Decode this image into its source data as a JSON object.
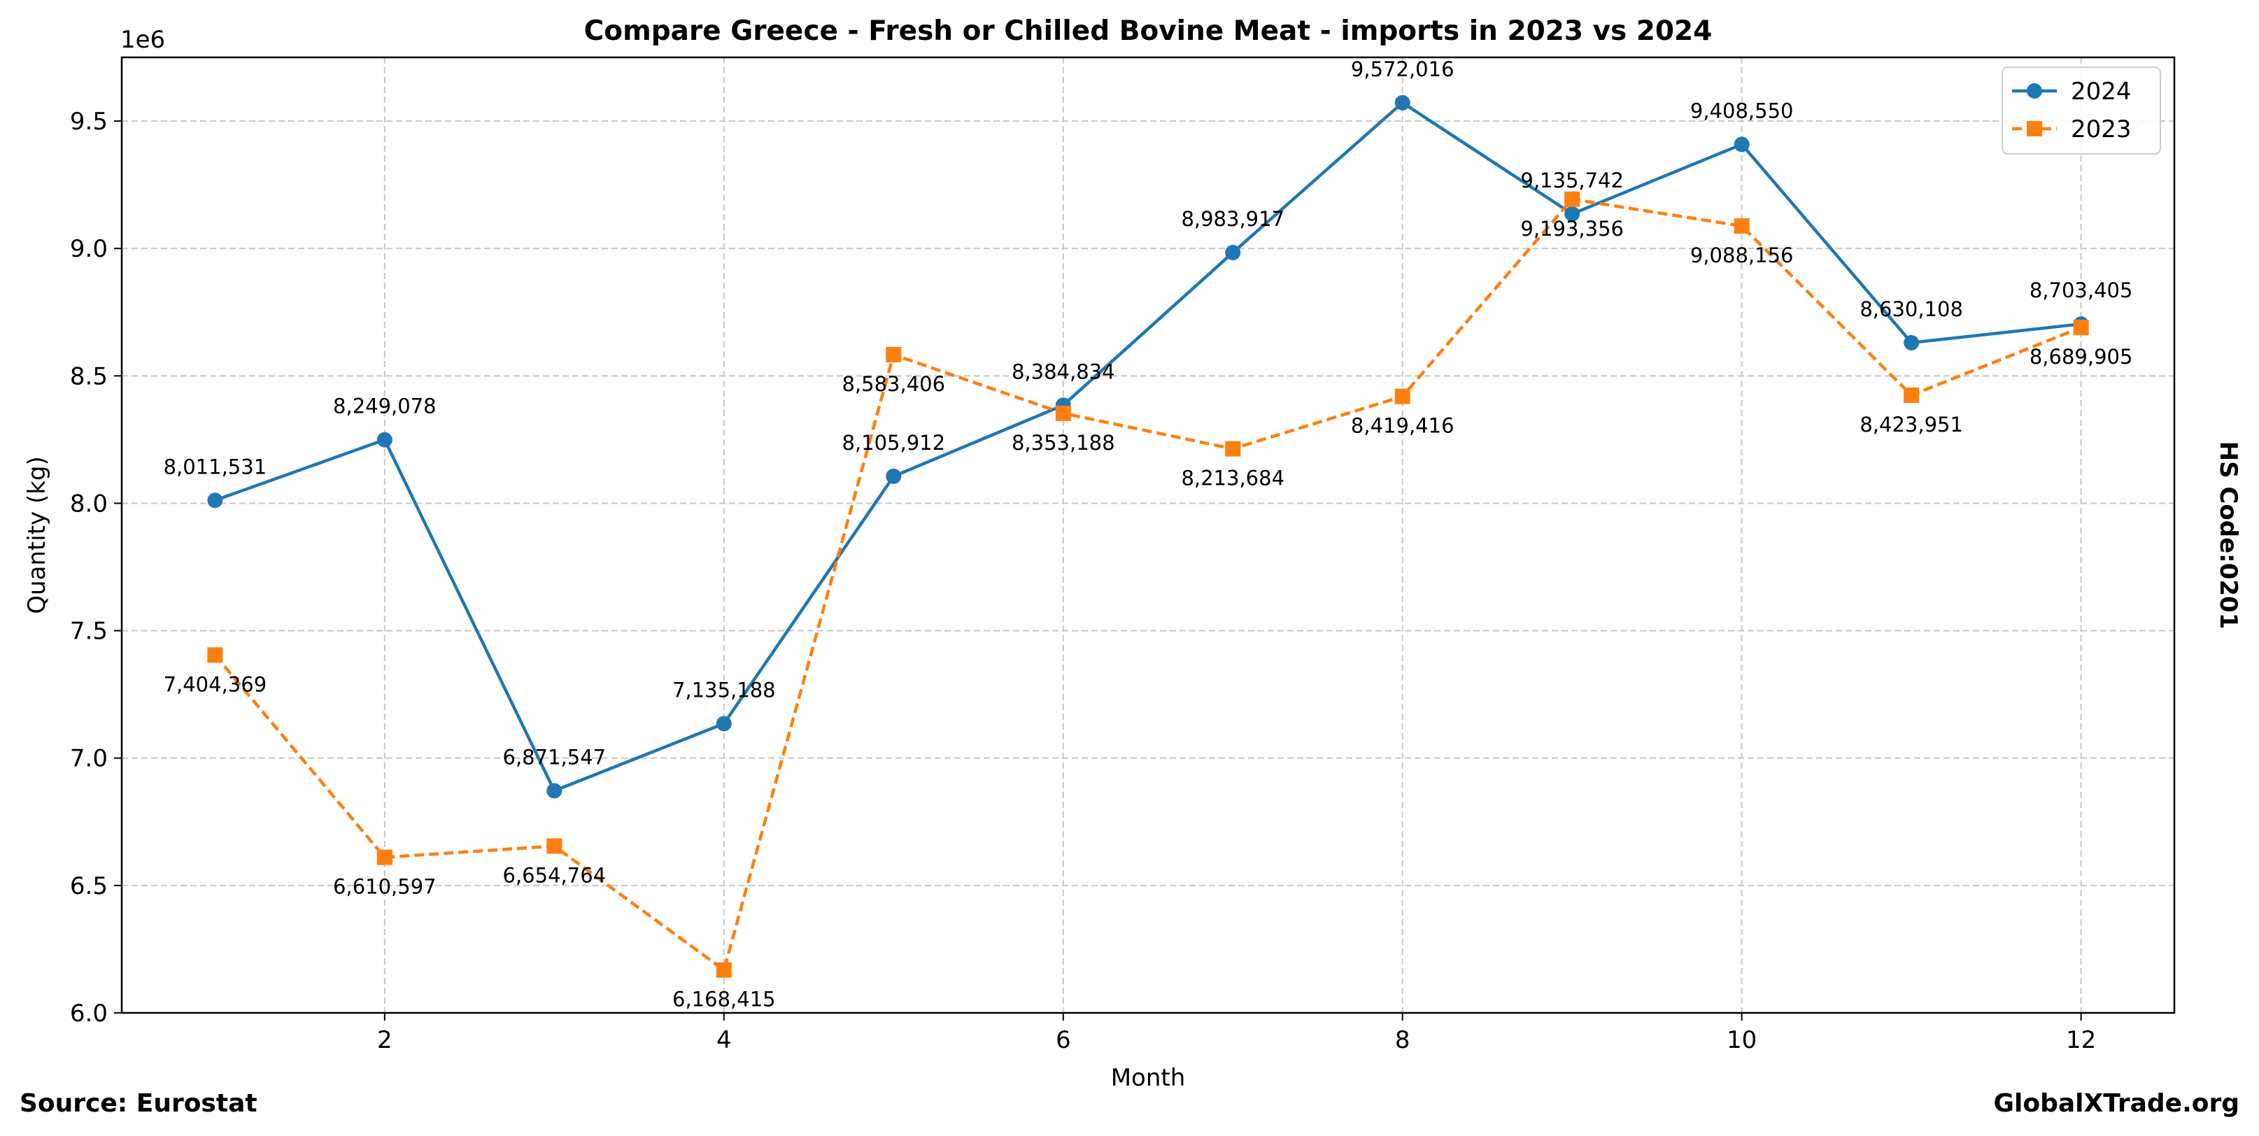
{
  "chart_data": {
    "type": "line",
    "title": "Compare Greece - Fresh or Chilled Bovine Meat - imports in 2023 vs 2024",
    "xlabel": "Month",
    "ylabel": "Quantity (kg)",
    "y_offset_label": "1e6",
    "y_scale": 1000000,
    "xlim": [
      0.45,
      12.55
    ],
    "ylim": [
      6.0,
      9.75
    ],
    "x_ticks": [
      2,
      4,
      6,
      8,
      10,
      12
    ],
    "x_tick_labels": [
      "2",
      "4",
      "6",
      "8",
      "10",
      "12"
    ],
    "y_ticks": [
      6.0,
      6.5,
      7.0,
      7.5,
      8.0,
      8.5,
      9.0,
      9.5
    ],
    "y_tick_labels": [
      "6.0",
      "6.5",
      "7.0",
      "7.5",
      "8.0",
      "8.5",
      "9.0",
      "9.5"
    ],
    "grid": true,
    "legend_position": "top-right",
    "x": [
      1,
      2,
      3,
      4,
      5,
      6,
      7,
      8,
      9,
      10,
      11,
      12
    ],
    "series": [
      {
        "name": "2024",
        "color": "#1f77b4",
        "marker": "circle",
        "line_style": "solid",
        "values": [
          8011531,
          8249078,
          6871547,
          7135188,
          8105912,
          8384834,
          8983917,
          9572016,
          9135742,
          9408550,
          8630108,
          8703405
        ],
        "labels": [
          "8,011,531",
          "8,249,078",
          "6,871,547",
          "7,135,188",
          "8,105,912",
          "8,384,834",
          "8,983,917",
          "9,572,016",
          "9,135,742",
          "9,408,550",
          "8,630,108",
          "8,703,405"
        ]
      },
      {
        "name": "2023",
        "color": "#ff7f0e",
        "marker": "square",
        "line_style": "dashed",
        "values": [
          7404369,
          6610597,
          6654764,
          6168415,
          8583406,
          8353188,
          8213684,
          8419416,
          9193356,
          9088156,
          8423951,
          8689905
        ],
        "labels": [
          "7,404,369",
          "6,610,597",
          "6,654,764",
          "6,168,415",
          "8,583,406",
          "8,353,188",
          "8,213,684",
          "8,419,416",
          "9,193,356",
          "9,088,156",
          "8,423,951",
          "8,689,905"
        ]
      }
    ]
  },
  "side_label": "HS Code:0201",
  "footer": {
    "source": "Source: Eurostat",
    "brand": "GlobalXTrade.org"
  }
}
